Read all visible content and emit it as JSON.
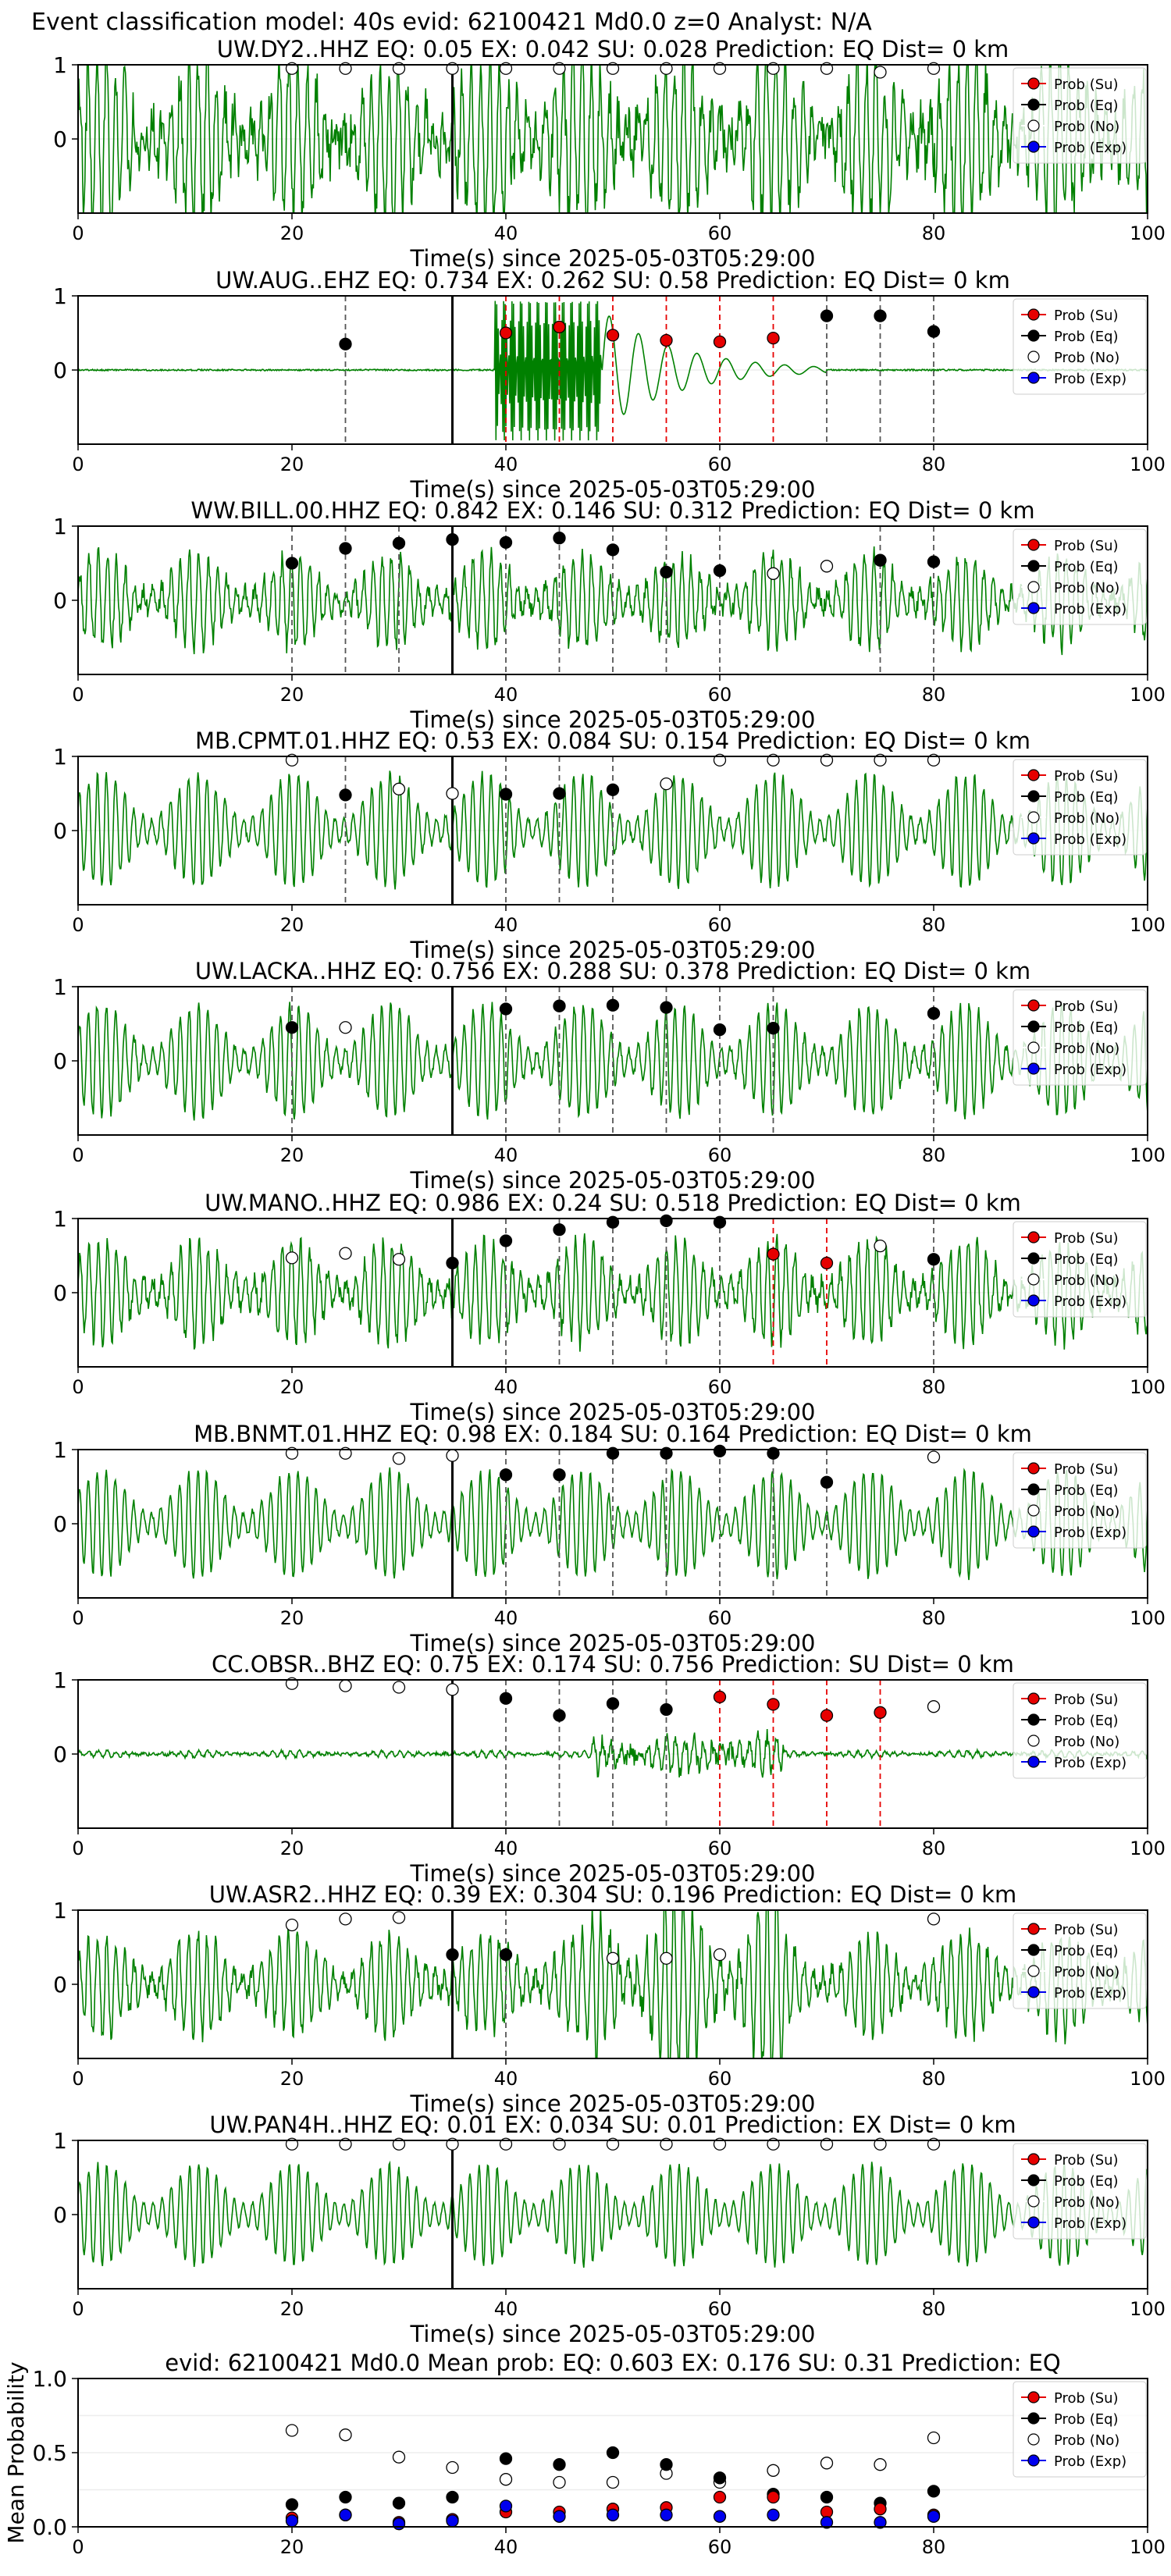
{
  "figure": {
    "title": "Event classification model: 40s evid: 62100421 Md0.0 z=0 Analyst: N/A",
    "xlabel": "Time(s) since 2025-05-03T05:29:00",
    "legend": [
      "Prob (Su)",
      "Prob (Eq)",
      "Prob (No)",
      "Prob (Exp)"
    ],
    "colors": {
      "su": "#e60000",
      "eq": "#000000",
      "no": "#ffffff",
      "exp": "#0000ee",
      "trace": "#008000"
    },
    "xticks": [
      0,
      20,
      40,
      60,
      80,
      100
    ],
    "wave_yticks": [
      1,
      0
    ],
    "mean_yticks": [
      0.0,
      0.5,
      1.0
    ],
    "mean_ylabel": "Mean Probability",
    "pick_time": 35
  },
  "chart_data": [
    {
      "type": "line",
      "title": "UW.DY2..HHZ   EQ: 0.05  EX: 0.042  SU: 0.028   Prediction: EQ    Dist= 0 km",
      "xlim": [
        0,
        100
      ],
      "ylim": [
        -1,
        1
      ],
      "pick": 35,
      "noise": 0.7,
      "amp": 1.6,
      "vlines": [],
      "points": [
        {
          "x": 20,
          "y": 0.95,
          "c": "no"
        },
        {
          "x": 25,
          "y": 0.95,
          "c": "no"
        },
        {
          "x": 30,
          "y": 0.95,
          "c": "no"
        },
        {
          "x": 35,
          "y": 0.95,
          "c": "no"
        },
        {
          "x": 40,
          "y": 0.95,
          "c": "no"
        },
        {
          "x": 45,
          "y": 0.95,
          "c": "no"
        },
        {
          "x": 50,
          "y": 0.95,
          "c": "no"
        },
        {
          "x": 55,
          "y": 0.95,
          "c": "no"
        },
        {
          "x": 60,
          "y": 0.95,
          "c": "no"
        },
        {
          "x": 65,
          "y": 0.95,
          "c": "no"
        },
        {
          "x": 70,
          "y": 0.95,
          "c": "no"
        },
        {
          "x": 75,
          "y": 0.9,
          "c": "no"
        },
        {
          "x": 80,
          "y": 0.95,
          "c": "no"
        }
      ]
    },
    {
      "type": "line",
      "title": "UW.AUG..EHZ   EQ: 0.734  EX: 0.262  SU: 0.58   Prediction: EQ    Dist= 0 km",
      "xlim": [
        0,
        100
      ],
      "ylim": [
        -1,
        1
      ],
      "pick": 35,
      "noise": 0.03,
      "amp": 0.05,
      "vlines": [
        {
          "x": 25,
          "c": "k"
        },
        {
          "x": 40,
          "c": "r"
        },
        {
          "x": 45,
          "c": "r"
        },
        {
          "x": 50,
          "c": "r"
        },
        {
          "x": 55,
          "c": "r"
        },
        {
          "x": 60,
          "c": "r"
        },
        {
          "x": 65,
          "c": "r"
        },
        {
          "x": 70,
          "c": "k"
        },
        {
          "x": 75,
          "c": "k"
        },
        {
          "x": 80,
          "c": "k"
        }
      ],
      "points": [
        {
          "x": 25,
          "y": 0.35,
          "c": "eq"
        },
        {
          "x": 40,
          "y": 0.5,
          "c": "su"
        },
        {
          "x": 45,
          "y": 0.58,
          "c": "su"
        },
        {
          "x": 50,
          "y": 0.47,
          "c": "su"
        },
        {
          "x": 55,
          "y": 0.4,
          "c": "su"
        },
        {
          "x": 60,
          "y": 0.38,
          "c": "su"
        },
        {
          "x": 65,
          "y": 0.43,
          "c": "su"
        },
        {
          "x": 70,
          "y": 0.73,
          "c": "eq"
        },
        {
          "x": 75,
          "y": 0.73,
          "c": "eq"
        },
        {
          "x": 80,
          "y": 0.52,
          "c": "eq"
        }
      ]
    },
    {
      "type": "line",
      "title": "WW.BILL.00.HHZ   EQ: 0.842  EX: 0.146  SU: 0.312   Prediction: EQ    Dist= 0 km",
      "xlim": [
        0,
        100
      ],
      "ylim": [
        -1,
        1
      ],
      "pick": 35,
      "noise": 0.25,
      "amp": 0.9,
      "vlines": [
        {
          "x": 20,
          "c": "k"
        },
        {
          "x": 25,
          "c": "k"
        },
        {
          "x": 30,
          "c": "k"
        },
        {
          "x": 35,
          "c": "k"
        },
        {
          "x": 40,
          "c": "k"
        },
        {
          "x": 45,
          "c": "k"
        },
        {
          "x": 50,
          "c": "k"
        },
        {
          "x": 55,
          "c": "k"
        },
        {
          "x": 60,
          "c": "k"
        },
        {
          "x": 75,
          "c": "k"
        },
        {
          "x": 80,
          "c": "k"
        }
      ],
      "points": [
        {
          "x": 20,
          "y": 0.5,
          "c": "eq"
        },
        {
          "x": 25,
          "y": 0.7,
          "c": "eq"
        },
        {
          "x": 30,
          "y": 0.77,
          "c": "eq"
        },
        {
          "x": 35,
          "y": 0.82,
          "c": "eq"
        },
        {
          "x": 40,
          "y": 0.78,
          "c": "eq"
        },
        {
          "x": 45,
          "y": 0.84,
          "c": "eq"
        },
        {
          "x": 50,
          "y": 0.68,
          "c": "eq"
        },
        {
          "x": 55,
          "y": 0.38,
          "c": "eq"
        },
        {
          "x": 60,
          "y": 0.4,
          "c": "eq"
        },
        {
          "x": 65,
          "y": 0.36,
          "c": "no"
        },
        {
          "x": 70,
          "y": 0.46,
          "c": "no"
        },
        {
          "x": 75,
          "y": 0.54,
          "c": "eq"
        },
        {
          "x": 80,
          "y": 0.52,
          "c": "eq"
        }
      ]
    },
    {
      "type": "line",
      "title": "MB.CPMT.01.HHZ   EQ: 0.53  EX: 0.084  SU: 0.154   Prediction: EQ    Dist= 0 km",
      "xlim": [
        0,
        100
      ],
      "ylim": [
        -1,
        1
      ],
      "pick": 35,
      "noise": 0.1,
      "amp": 1.1,
      "vlines": [
        {
          "x": 25,
          "c": "k"
        },
        {
          "x": 40,
          "c": "k"
        },
        {
          "x": 45,
          "c": "k"
        },
        {
          "x": 50,
          "c": "k"
        }
      ],
      "points": [
        {
          "x": 20,
          "y": 0.95,
          "c": "no"
        },
        {
          "x": 25,
          "y": 0.48,
          "c": "eq"
        },
        {
          "x": 30,
          "y": 0.56,
          "c": "no"
        },
        {
          "x": 35,
          "y": 0.5,
          "c": "no"
        },
        {
          "x": 40,
          "y": 0.49,
          "c": "eq"
        },
        {
          "x": 45,
          "y": 0.5,
          "c": "eq"
        },
        {
          "x": 50,
          "y": 0.55,
          "c": "eq"
        },
        {
          "x": 55,
          "y": 0.63,
          "c": "no"
        },
        {
          "x": 60,
          "y": 0.95,
          "c": "no"
        },
        {
          "x": 65,
          "y": 0.95,
          "c": "no"
        },
        {
          "x": 70,
          "y": 0.95,
          "c": "no"
        },
        {
          "x": 75,
          "y": 0.95,
          "c": "no"
        },
        {
          "x": 80,
          "y": 0.95,
          "c": "no"
        }
      ]
    },
    {
      "type": "line",
      "title": "UW.LACKA..HHZ   EQ: 0.756  EX: 0.288  SU: 0.378   Prediction: EQ    Dist= 0 km",
      "xlim": [
        0,
        100
      ],
      "ylim": [
        -1,
        1
      ],
      "pick": 35,
      "noise": 0.12,
      "amp": 1.1,
      "vlines": [
        {
          "x": 20,
          "c": "k"
        },
        {
          "x": 40,
          "c": "k"
        },
        {
          "x": 45,
          "c": "k"
        },
        {
          "x": 50,
          "c": "k"
        },
        {
          "x": 55,
          "c": "k"
        },
        {
          "x": 60,
          "c": "k"
        },
        {
          "x": 65,
          "c": "k"
        },
        {
          "x": 80,
          "c": "k"
        }
      ],
      "points": [
        {
          "x": 20,
          "y": 0.45,
          "c": "eq"
        },
        {
          "x": 25,
          "y": 0.45,
          "c": "no"
        },
        {
          "x": 40,
          "y": 0.7,
          "c": "eq"
        },
        {
          "x": 45,
          "y": 0.74,
          "c": "eq"
        },
        {
          "x": 50,
          "y": 0.75,
          "c": "eq"
        },
        {
          "x": 55,
          "y": 0.72,
          "c": "eq"
        },
        {
          "x": 60,
          "y": 0.42,
          "c": "eq"
        },
        {
          "x": 65,
          "y": 0.44,
          "c": "eq"
        },
        {
          "x": 80,
          "y": 0.64,
          "c": "eq"
        }
      ]
    },
    {
      "type": "line",
      "title": "UW.MANO..HHZ   EQ: 0.986  EX: 0.24  SU: 0.518   Prediction: EQ    Dist= 0 km",
      "xlim": [
        0,
        100
      ],
      "ylim": [
        -1,
        1
      ],
      "pick": 35,
      "noise": 0.25,
      "amp": 1.0,
      "vlines": [
        {
          "x": 40,
          "c": "k"
        },
        {
          "x": 45,
          "c": "k"
        },
        {
          "x": 50,
          "c": "k"
        },
        {
          "x": 55,
          "c": "k"
        },
        {
          "x": 60,
          "c": "k"
        },
        {
          "x": 65,
          "c": "r"
        },
        {
          "x": 70,
          "c": "r"
        },
        {
          "x": 80,
          "c": "k"
        }
      ],
      "points": [
        {
          "x": 20,
          "y": 0.47,
          "c": "no"
        },
        {
          "x": 25,
          "y": 0.53,
          "c": "no"
        },
        {
          "x": 30,
          "y": 0.45,
          "c": "no"
        },
        {
          "x": 35,
          "y": 0.4,
          "c": "eq"
        },
        {
          "x": 40,
          "y": 0.7,
          "c": "eq"
        },
        {
          "x": 45,
          "y": 0.85,
          "c": "eq"
        },
        {
          "x": 50,
          "y": 0.95,
          "c": "eq"
        },
        {
          "x": 55,
          "y": 0.97,
          "c": "eq"
        },
        {
          "x": 60,
          "y": 0.95,
          "c": "eq"
        },
        {
          "x": 65,
          "y": 0.52,
          "c": "su"
        },
        {
          "x": 70,
          "y": 0.4,
          "c": "su"
        },
        {
          "x": 75,
          "y": 0.63,
          "c": "no"
        },
        {
          "x": 80,
          "y": 0.45,
          "c": "eq"
        }
      ]
    },
    {
      "type": "line",
      "title": "MB.BNMT.01.HHZ   EQ: 0.98  EX: 0.184  SU: 0.164   Prediction: EQ    Dist= 0 km",
      "xlim": [
        0,
        100
      ],
      "ylim": [
        -1,
        1
      ],
      "pick": 35,
      "noise": 0.08,
      "amp": 1.05,
      "vlines": [
        {
          "x": 40,
          "c": "k"
        },
        {
          "x": 45,
          "c": "k"
        },
        {
          "x": 50,
          "c": "k"
        },
        {
          "x": 55,
          "c": "k"
        },
        {
          "x": 60,
          "c": "k"
        },
        {
          "x": 65,
          "c": "k"
        },
        {
          "x": 70,
          "c": "k"
        }
      ],
      "points": [
        {
          "x": 20,
          "y": 0.95,
          "c": "no"
        },
        {
          "x": 25,
          "y": 0.95,
          "c": "no"
        },
        {
          "x": 30,
          "y": 0.88,
          "c": "no"
        },
        {
          "x": 35,
          "y": 0.92,
          "c": "no"
        },
        {
          "x": 40,
          "y": 0.66,
          "c": "eq"
        },
        {
          "x": 45,
          "y": 0.66,
          "c": "eq"
        },
        {
          "x": 50,
          "y": 0.95,
          "c": "eq"
        },
        {
          "x": 55,
          "y": 0.95,
          "c": "eq"
        },
        {
          "x": 60,
          "y": 0.98,
          "c": "eq"
        },
        {
          "x": 65,
          "y": 0.95,
          "c": "eq"
        },
        {
          "x": 70,
          "y": 0.56,
          "c": "eq"
        },
        {
          "x": 80,
          "y": 0.9,
          "c": "no"
        }
      ]
    },
    {
      "type": "line",
      "title": "CC.OBSR..BHZ   EQ: 0.75  EX: 0.174  SU: 0.756   Prediction: SU    Dist= 0 km",
      "xlim": [
        0,
        100
      ],
      "ylim": [
        -1,
        1
      ],
      "pick": 35,
      "noise": 0.08,
      "amp": 0.12,
      "vlines": [
        {
          "x": 40,
          "c": "k"
        },
        {
          "x": 45,
          "c": "k"
        },
        {
          "x": 50,
          "c": "k"
        },
        {
          "x": 55,
          "c": "k"
        },
        {
          "x": 60,
          "c": "r"
        },
        {
          "x": 65,
          "c": "r"
        },
        {
          "x": 70,
          "c": "r"
        },
        {
          "x": 75,
          "c": "r"
        }
      ],
      "points": [
        {
          "x": 20,
          "y": 0.95,
          "c": "no"
        },
        {
          "x": 25,
          "y": 0.92,
          "c": "no"
        },
        {
          "x": 30,
          "y": 0.9,
          "c": "no"
        },
        {
          "x": 35,
          "y": 0.87,
          "c": "no"
        },
        {
          "x": 40,
          "y": 0.75,
          "c": "eq"
        },
        {
          "x": 45,
          "y": 0.52,
          "c": "eq"
        },
        {
          "x": 50,
          "y": 0.68,
          "c": "eq"
        },
        {
          "x": 55,
          "y": 0.6,
          "c": "eq"
        },
        {
          "x": 60,
          "y": 0.77,
          "c": "su"
        },
        {
          "x": 65,
          "y": 0.67,
          "c": "su"
        },
        {
          "x": 70,
          "y": 0.52,
          "c": "su"
        },
        {
          "x": 75,
          "y": 0.56,
          "c": "su"
        },
        {
          "x": 80,
          "y": 0.64,
          "c": "no"
        }
      ]
    },
    {
      "type": "line",
      "title": "UW.ASR2..HHZ   EQ: 0.39  EX: 0.304  SU: 0.196   Prediction: EQ    Dist= 0 km",
      "xlim": [
        0,
        100
      ],
      "ylim": [
        -1,
        1
      ],
      "pick": 35,
      "noise": 0.25,
      "amp": 1.0,
      "vlines": [
        {
          "x": 40,
          "c": "k"
        }
      ],
      "points": [
        {
          "x": 20,
          "y": 0.8,
          "c": "no"
        },
        {
          "x": 25,
          "y": 0.88,
          "c": "no"
        },
        {
          "x": 30,
          "y": 0.9,
          "c": "no"
        },
        {
          "x": 35,
          "y": 0.4,
          "c": "eq"
        },
        {
          "x": 40,
          "y": 0.4,
          "c": "eq"
        },
        {
          "x": 50,
          "y": 0.35,
          "c": "no"
        },
        {
          "x": 55,
          "y": 0.35,
          "c": "no"
        },
        {
          "x": 60,
          "y": 0.4,
          "c": "no"
        },
        {
          "x": 80,
          "y": 0.88,
          "c": "no"
        }
      ]
    },
    {
      "type": "line",
      "title": "UW.PAN4H..HHZ   EQ: 0.01  EX: 0.034  SU: 0.01   Prediction: EX    Dist= 0 km",
      "xlim": [
        0,
        100
      ],
      "ylim": [
        -1,
        1
      ],
      "pick": 35,
      "noise": 0.05,
      "amp": 1.0,
      "vlines": [],
      "points": [
        {
          "x": 20,
          "y": 0.95,
          "c": "no"
        },
        {
          "x": 25,
          "y": 0.95,
          "c": "no"
        },
        {
          "x": 30,
          "y": 0.95,
          "c": "no"
        },
        {
          "x": 35,
          "y": 0.95,
          "c": "no"
        },
        {
          "x": 40,
          "y": 0.95,
          "c": "no"
        },
        {
          "x": 45,
          "y": 0.95,
          "c": "no"
        },
        {
          "x": 50,
          "y": 0.95,
          "c": "no"
        },
        {
          "x": 55,
          "y": 0.95,
          "c": "no"
        },
        {
          "x": 60,
          "y": 0.95,
          "c": "no"
        },
        {
          "x": 65,
          "y": 0.95,
          "c": "no"
        },
        {
          "x": 70,
          "y": 0.95,
          "c": "no"
        },
        {
          "x": 75,
          "y": 0.95,
          "c": "no"
        },
        {
          "x": 80,
          "y": 0.95,
          "c": "no"
        }
      ]
    },
    {
      "type": "scatter",
      "title": "evid: 62100421   Md0.0   Mean prob:   EQ: 0.603  EX: 0.176  SU: 0.31   Prediction: EQ",
      "xlim": [
        0,
        100
      ],
      "ylim": [
        0,
        1
      ],
      "x": [
        20,
        25,
        30,
        35,
        40,
        45,
        50,
        55,
        60,
        65,
        70,
        75,
        80
      ],
      "series": [
        {
          "key": "no",
          "values": [
            0.65,
            0.62,
            0.47,
            0.4,
            0.32,
            0.3,
            0.3,
            0.36,
            0.3,
            0.38,
            0.43,
            0.42,
            0.6
          ]
        },
        {
          "key": "eq",
          "values": [
            0.15,
            0.2,
            0.16,
            0.2,
            0.46,
            0.42,
            0.5,
            0.42,
            0.33,
            0.22,
            0.2,
            0.16,
            0.24
          ]
        },
        {
          "key": "su",
          "values": [
            0.06,
            0.08,
            0.03,
            0.05,
            0.1,
            0.1,
            0.12,
            0.13,
            0.2,
            0.2,
            0.1,
            0.12,
            0.08
          ]
        },
        {
          "key": "exp",
          "values": [
            0.04,
            0.08,
            0.02,
            0.04,
            0.14,
            0.07,
            0.08,
            0.08,
            0.07,
            0.08,
            0.03,
            0.03,
            0.07
          ]
        }
      ]
    }
  ]
}
